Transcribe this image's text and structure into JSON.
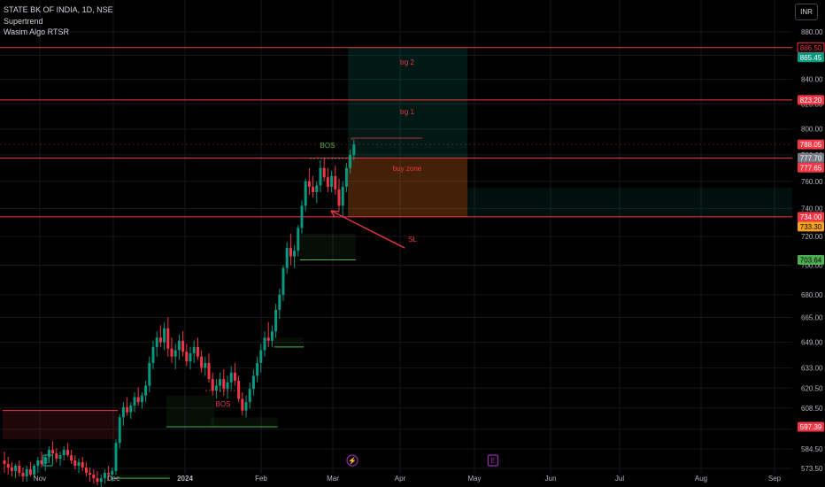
{
  "header": {
    "symbol": "STATE BK OF INDIA, 1D, NSE",
    "indicator_1": "Supertrend",
    "indicator_2": "Wasim Algo RTSR",
    "currency_button": "INR"
  },
  "colors": {
    "background": "#000000",
    "up": "#089981",
    "down": "#f23645",
    "level_line": "#f23645",
    "supertrend_up": "#4caf50",
    "supertrend_down": "#f23645",
    "axis_text": "#b2b5be"
  },
  "chart_data": {
    "type": "candlestick",
    "x_axis": {
      "labels": [
        "Nov",
        "Dec",
        "2024",
        "Feb",
        "Mar",
        "Apr",
        "May",
        "Jun",
        "Jul",
        "Aug",
        "Sep"
      ]
    },
    "y_axis": {
      "scale": "log",
      "ticks": [
        573.5,
        584.5,
        596.0,
        608.5,
        620.5,
        633.0,
        649.0,
        665.0,
        680.0,
        700.0,
        720.0,
        740.0,
        760.0,
        780.0,
        800.0,
        820.0,
        840.0,
        860.0,
        880.0
      ],
      "range": [
        568,
        900
      ]
    },
    "price_labels": [
      {
        "value": 866.5,
        "text": "866.50",
        "style": "outline-red"
      },
      {
        "value": 865.45,
        "text": "865.45",
        "style": "fill-teal"
      },
      {
        "value": 823.2,
        "text": "823.20",
        "style": "fill-red"
      },
      {
        "value": 788.05,
        "text": "788.05",
        "style": "fill-red"
      },
      {
        "value": 777.7,
        "text": "777.70",
        "style": "fill-gray"
      },
      {
        "value": 777.65,
        "text": "777.65",
        "style": "fill-red"
      },
      {
        "value": 734.0,
        "text": "734.00",
        "style": "fill-red"
      },
      {
        "value": 733.3,
        "text": "733.30",
        "style": "fill-orange"
      },
      {
        "value": 703.64,
        "text": "703.64",
        "style": "fill-green"
      },
      {
        "value": 597.39,
        "text": "597.39",
        "style": "fill-red"
      }
    ],
    "horizontal_levels": [
      866.5,
      823.2,
      777.65,
      734.0
    ],
    "position": {
      "entry": 777.7,
      "stop": 734.0,
      "target": 866.5,
      "labels": {
        "target_2": "trg 2",
        "target_1": "trg 1",
        "zone": "buy zone",
        "stop": "SL"
      }
    },
    "annotations": [
      {
        "text": "BOS",
        "color": "#4caf50",
        "kind": "break-of-structure-up"
      },
      {
        "text": "BOS",
        "color": "#f23645",
        "kind": "break-of-structure-down"
      }
    ],
    "event_markers": [
      {
        "symbol": "E",
        "color": "#089981"
      },
      {
        "symbol": "⚡",
        "color": "#9c27b0"
      },
      {
        "symbol": "E",
        "color": "#9c27b0"
      }
    ],
    "candles": [
      [
        578.0,
        583.0,
        571.0,
        576.0
      ],
      [
        576.0,
        580.0,
        570.0,
        574.0
      ],
      [
        574.0,
        577.0,
        569.0,
        572.0
      ],
      [
        572.0,
        576.0,
        568.0,
        575.0
      ],
      [
        575.0,
        578.0,
        569.0,
        571.0
      ],
      [
        571.0,
        574.0,
        566.0,
        569.0
      ],
      [
        569.0,
        575.0,
        566.0,
        573.0
      ],
      [
        573.0,
        577.0,
        569.0,
        570.0
      ],
      [
        570.0,
        576.0,
        568.0,
        575.0
      ],
      [
        575.0,
        580.0,
        571.0,
        578.0
      ],
      [
        578.0,
        583.0,
        574.0,
        576.0
      ],
      [
        576.0,
        581.0,
        572.0,
        580.0
      ],
      [
        580.0,
        586.0,
        577.0,
        584.0
      ],
      [
        584.0,
        589.0,
        580.0,
        582.0
      ],
      [
        582.0,
        585.0,
        577.0,
        579.0
      ],
      [
        579.0,
        583.0,
        575.0,
        581.0
      ],
      [
        581.0,
        586.0,
        578.0,
        584.0
      ],
      [
        584.0,
        588.0,
        580.0,
        581.0
      ],
      [
        581.0,
        584.0,
        576.0,
        578.0
      ],
      [
        578.0,
        581.0,
        573.0,
        575.0
      ],
      [
        575.0,
        579.0,
        571.0,
        577.0
      ],
      [
        577.0,
        580.0,
        572.0,
        574.0
      ],
      [
        574.0,
        577.0,
        569.0,
        571.0
      ],
      [
        571.0,
        574.0,
        566.0,
        570.0
      ],
      [
        570.0,
        573.0,
        565.0,
        568.0
      ],
      [
        568.0,
        572.0,
        564.0,
        566.0
      ],
      [
        566.0,
        570.0,
        562.0,
        568.0
      ],
      [
        568.0,
        573.0,
        565.0,
        571.0
      ],
      [
        571.0,
        575.0,
        567.0,
        570.0
      ],
      [
        570.0,
        574.0,
        566.0,
        572.0
      ],
      [
        572.0,
        590.0,
        570.0,
        588.0
      ],
      [
        588.0,
        605.0,
        585.0,
        603.0
      ],
      [
        603.0,
        612.0,
        598.0,
        609.0
      ],
      [
        609.0,
        615.0,
        604.0,
        606.0
      ],
      [
        606.0,
        612.0,
        602.0,
        610.0
      ],
      [
        610.0,
        618.0,
        606.0,
        615.0
      ],
      [
        615.0,
        621.0,
        610.0,
        612.0
      ],
      [
        612.0,
        618.0,
        608.0,
        616.0
      ],
      [
        616.0,
        625.0,
        612.0,
        622.0
      ],
      [
        622.0,
        640.0,
        618.0,
        636.0
      ],
      [
        636.0,
        650.0,
        632.0,
        646.0
      ],
      [
        646.0,
        656.0,
        640.0,
        652.0
      ],
      [
        652.0,
        660.0,
        646.0,
        649.0
      ],
      [
        649.0,
        662.0,
        644.0,
        658.0
      ],
      [
        658.0,
        665.0,
        640.0,
        645.0
      ],
      [
        645.0,
        652.0,
        636.0,
        640.0
      ],
      [
        640.0,
        648.0,
        632.0,
        644.0
      ],
      [
        644.0,
        654.0,
        638.0,
        650.0
      ],
      [
        650.0,
        656.0,
        640.0,
        643.0
      ],
      [
        643.0,
        648.0,
        634.0,
        637.0
      ],
      [
        637.0,
        646.0,
        632.0,
        642.0
      ],
      [
        642.0,
        650.0,
        636.0,
        646.0
      ],
      [
        646.0,
        652.0,
        638.0,
        640.0
      ],
      [
        640.0,
        644.0,
        630.0,
        633.0
      ],
      [
        633.0,
        640.0,
        628.0,
        636.0
      ],
      [
        636.0,
        642.0,
        624.0,
        626.0
      ],
      [
        626.0,
        630.0,
        616.0,
        619.0
      ],
      [
        619.0,
        626.0,
        614.0,
        622.0
      ],
      [
        622.0,
        630.0,
        618.0,
        626.0
      ],
      [
        626.0,
        632.0,
        616.0,
        620.0
      ],
      [
        620.0,
        628.0,
        614.0,
        624.0
      ],
      [
        624.0,
        634.0,
        620.0,
        630.0
      ],
      [
        630.0,
        636.0,
        622.0,
        625.0
      ],
      [
        625.0,
        628.0,
        612.0,
        614.0
      ],
      [
        614.0,
        618.0,
        604.0,
        607.0
      ],
      [
        607.0,
        616.0,
        603.0,
        612.0
      ],
      [
        612.0,
        624.0,
        608.0,
        620.0
      ],
      [
        620.0,
        632.0,
        616.0,
        628.0
      ],
      [
        628.0,
        640.0,
        624.0,
        636.0
      ],
      [
        636.0,
        648.0,
        630.0,
        644.0
      ],
      [
        644.0,
        656.0,
        640.0,
        652.0
      ],
      [
        652.0,
        662.0,
        646.0,
        650.0
      ],
      [
        650.0,
        660.0,
        646.0,
        656.0
      ],
      [
        656.0,
        674.0,
        652.0,
        670.0
      ],
      [
        670.0,
        684.0,
        664.0,
        680.0
      ],
      [
        680.0,
        700.0,
        676.0,
        698.0
      ],
      [
        698.0,
        716.0,
        694.0,
        712.0
      ],
      [
        712.0,
        722.0,
        700.0,
        706.0
      ],
      [
        706.0,
        714.0,
        698.0,
        710.0
      ],
      [
        710.0,
        728.0,
        706.0,
        726.0
      ],
      [
        726.0,
        746.0,
        722.0,
        742.0
      ],
      [
        742.0,
        762.0,
        738.0,
        760.0
      ],
      [
        760.0,
        770.0,
        750.0,
        756.0
      ],
      [
        756.0,
        764.0,
        748.0,
        752.0
      ],
      [
        752.0,
        760.0,
        744.0,
        757.0
      ],
      [
        757.0,
        776.0,
        752.0,
        770.0
      ],
      [
        770.0,
        778.0,
        760.0,
        763.0
      ],
      [
        763.0,
        770.0,
        752.0,
        756.0
      ],
      [
        756.0,
        768.0,
        752.0,
        764.0
      ],
      [
        764.0,
        772.0,
        750.0,
        754.0
      ],
      [
        754.0,
        762.0,
        738.0,
        742.0
      ],
      [
        742.0,
        760.0,
        734.0,
        756.0
      ],
      [
        756.0,
        774.0,
        752.0,
        770.0
      ],
      [
        770.0,
        784.0,
        766.0,
        780.0
      ],
      [
        780.0,
        792.0,
        776.0,
        788.0
      ]
    ],
    "supertrend": [
      {
        "from": 0,
        "to": 30,
        "value": 607.0,
        "side": "down"
      },
      {
        "from": 30,
        "to": 44,
        "value": 568.0,
        "side": "up"
      },
      {
        "from": 44,
        "to": 56,
        "value": 597.39,
        "side": "up"
      },
      {
        "from": 56,
        "to": 73,
        "value": 597.39,
        "side": "up"
      },
      {
        "from": 73,
        "to": 80,
        "value": 646.0,
        "side": "up"
      },
      {
        "from": 80,
        "to": 94,
        "value": 703.64,
        "side": "up"
      }
    ]
  }
}
